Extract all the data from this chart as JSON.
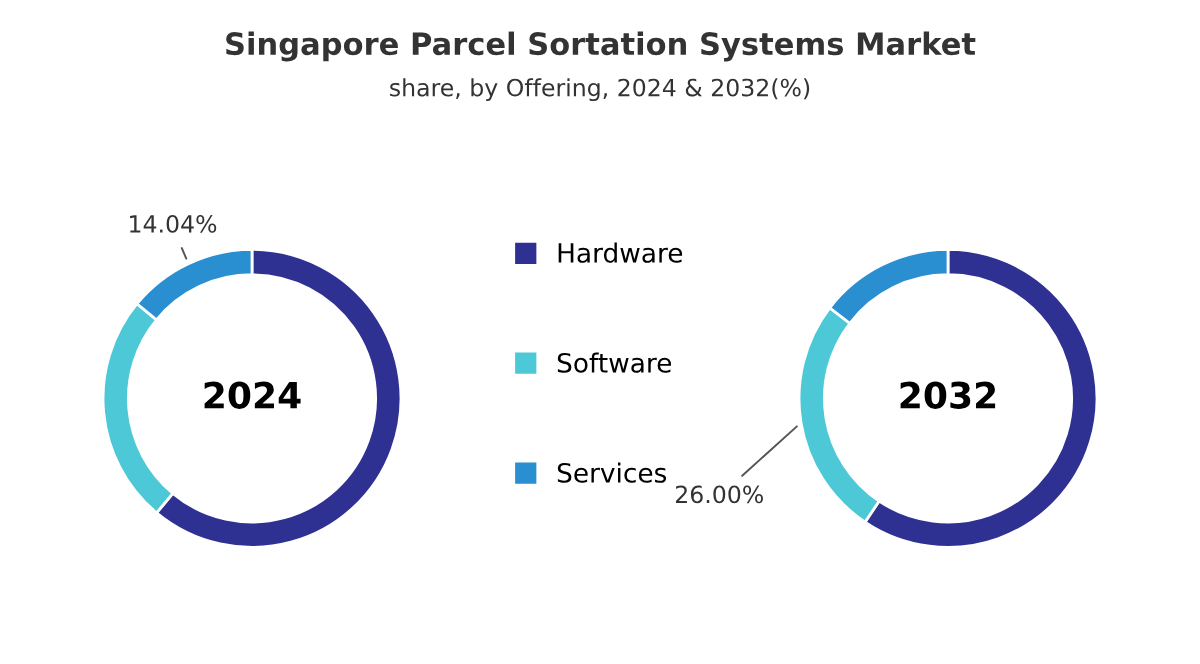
{
  "chart_data": [
    {
      "type": "donut",
      "title": "Singapore Parcel Sortation Systems Market",
      "subtitle": "share, by Offering, 2024 & 2032(%)",
      "annotations": [
        "2024"
      ],
      "categories": [
        "Hardware",
        "Software",
        "Services"
      ],
      "values": [
        61.06,
        24.9,
        14.04
      ],
      "colors": [
        "#2e3192",
        "#4dc8d6",
        "#2a8fd0"
      ],
      "value_labels": [
        null,
        null,
        "14.04%"
      ],
      "legend": "right"
    },
    {
      "type": "donut",
      "annotations": [
        "2032"
      ],
      "categories": [
        null,
        null,
        null
      ],
      "values": [
        59.4,
        26.0,
        14.6
      ],
      "colors": [
        "#2e3192",
        "#4dc8d6",
        "#2a8fd0"
      ],
      "value_labels": [
        null,
        "26.00%",
        null
      ]
    }
  ]
}
